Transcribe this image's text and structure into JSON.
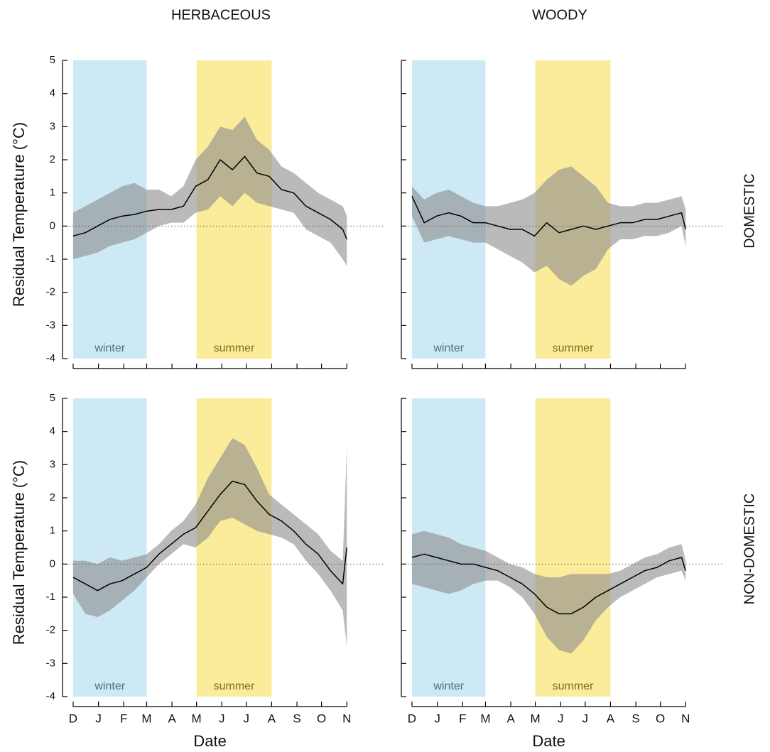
{
  "chart_data": [
    {
      "type": "line",
      "title": "HERBACEOUS",
      "ylabel": "Residual Temperature (°C)",
      "xlim": [
        -13,
        380
      ],
      "ylim": [
        -4.3,
        5
      ],
      "yticks": [
        -4,
        -3,
        -2,
        -1,
        0,
        1,
        2,
        3,
        4,
        5
      ],
      "xticks": [
        0,
        31,
        62,
        90,
        121,
        151,
        182,
        212,
        243,
        274,
        304,
        335
      ],
      "tick_labels": {
        "x": false,
        "y": true
      },
      "hline": 0,
      "spans": [
        {
          "label": "winter",
          "start": 0,
          "end": 90,
          "color": "#cde9f5",
          "text_color": "#4d6f86"
        },
        {
          "label": "summer",
          "start": 151,
          "end": 243,
          "color": "#fbec9b",
          "text_color": "#7d6d12"
        }
      ],
      "x": [
        0,
        15,
        30,
        45,
        60,
        75,
        90,
        105,
        120,
        135,
        150,
        165,
        180,
        195,
        210,
        225,
        240,
        255,
        270,
        285,
        300,
        315,
        330,
        335
      ],
      "band": {
        "color": "#8c8c8c",
        "lower": [
          -1.0,
          -0.9,
          -0.8,
          -0.6,
          -0.5,
          -0.4,
          -0.2,
          0.0,
          0.1,
          0.1,
          0.4,
          0.5,
          0.9,
          0.6,
          1.0,
          0.7,
          0.6,
          0.5,
          0.4,
          -0.1,
          -0.3,
          -0.5,
          -1.0,
          -1.2
        ],
        "upper": [
          0.4,
          0.6,
          0.8,
          1.0,
          1.2,
          1.3,
          1.1,
          1.1,
          0.9,
          1.2,
          2.0,
          2.4,
          3.0,
          2.9,
          3.3,
          2.6,
          2.3,
          1.8,
          1.6,
          1.3,
          1.0,
          0.8,
          0.6,
          0.3
        ]
      },
      "line": {
        "color": "#000000",
        "values": [
          -0.3,
          -0.2,
          0.0,
          0.2,
          0.3,
          0.35,
          0.45,
          0.5,
          0.5,
          0.6,
          1.2,
          1.4,
          2.0,
          1.7,
          2.1,
          1.6,
          1.5,
          1.1,
          1.0,
          0.6,
          0.4,
          0.2,
          -0.1,
          -0.4
        ]
      }
    },
    {
      "type": "line",
      "title": "WOODY",
      "row_label": "DOMESTIC",
      "xlim": [
        -13,
        380
      ],
      "ylim": [
        -4.3,
        5
      ],
      "yticks": [
        -4,
        -3,
        -2,
        -1,
        0,
        1,
        2,
        3,
        4,
        5
      ],
      "xticks": [
        0,
        31,
        62,
        90,
        121,
        151,
        182,
        212,
        243,
        274,
        304,
        335
      ],
      "tick_labels": {
        "x": false,
        "y": false
      },
      "hline": 0,
      "spans": [
        {
          "label": "winter",
          "start": 0,
          "end": 90,
          "color": "#cde9f5",
          "text_color": "#4d6f86"
        },
        {
          "label": "summer",
          "start": 151,
          "end": 243,
          "color": "#fbec9b",
          "text_color": "#7d6d12"
        }
      ],
      "x": [
        0,
        15,
        30,
        45,
        60,
        75,
        90,
        105,
        120,
        135,
        150,
        165,
        180,
        195,
        210,
        225,
        240,
        255,
        270,
        285,
        300,
        315,
        330,
        335
      ],
      "band": {
        "color": "#8c8c8c",
        "lower": [
          0.3,
          -0.5,
          -0.4,
          -0.3,
          -0.4,
          -0.5,
          -0.5,
          -0.7,
          -0.9,
          -1.1,
          -1.4,
          -1.2,
          -1.6,
          -1.8,
          -1.5,
          -1.3,
          -0.7,
          -0.4,
          -0.4,
          -0.3,
          -0.3,
          -0.2,
          0.0,
          -0.6
        ],
        "upper": [
          1.2,
          0.8,
          1.0,
          1.1,
          0.9,
          0.7,
          0.6,
          0.6,
          0.7,
          0.8,
          1.0,
          1.4,
          1.7,
          1.8,
          1.5,
          1.2,
          0.7,
          0.6,
          0.6,
          0.7,
          0.7,
          0.8,
          0.9,
          0.5
        ]
      },
      "line": {
        "color": "#000000",
        "values": [
          0.9,
          0.1,
          0.3,
          0.4,
          0.3,
          0.1,
          0.1,
          0.0,
          -0.1,
          -0.1,
          -0.3,
          0.1,
          -0.2,
          -0.1,
          0.0,
          -0.1,
          0.0,
          0.1,
          0.1,
          0.2,
          0.2,
          0.3,
          0.4,
          -0.1
        ]
      }
    },
    {
      "type": "line",
      "ylabel": "Residual Temperature (°C)",
      "xlabel": "Date",
      "xlim": [
        -13,
        380
      ],
      "ylim": [
        -4.3,
        5
      ],
      "yticks": [
        -4,
        -3,
        -2,
        -1,
        0,
        1,
        2,
        3,
        4,
        5
      ],
      "xticks": [
        {
          "value": 0,
          "label": "D"
        },
        {
          "value": 31,
          "label": "J"
        },
        {
          "value": 62,
          "label": "F"
        },
        {
          "value": 90,
          "label": "M"
        },
        {
          "value": 121,
          "label": "A"
        },
        {
          "value": 151,
          "label": "M"
        },
        {
          "value": 182,
          "label": "J"
        },
        {
          "value": 212,
          "label": "J"
        },
        {
          "value": 243,
          "label": "A"
        },
        {
          "value": 274,
          "label": "S"
        },
        {
          "value": 304,
          "label": "O"
        },
        {
          "value": 335,
          "label": "N"
        }
      ],
      "tick_labels": {
        "x": true,
        "y": true
      },
      "hline": 0,
      "spans": [
        {
          "label": "winter",
          "start": 0,
          "end": 90,
          "color": "#cde9f5",
          "text_color": "#4d6f86"
        },
        {
          "label": "summer",
          "start": 151,
          "end": 243,
          "color": "#fbec9b",
          "text_color": "#7d6d12"
        }
      ],
      "x": [
        0,
        15,
        30,
        45,
        60,
        75,
        90,
        105,
        120,
        135,
        150,
        165,
        180,
        195,
        210,
        225,
        240,
        255,
        270,
        285,
        300,
        315,
        330,
        335
      ],
      "band": {
        "color": "#8c8c8c",
        "lower": [
          -0.9,
          -1.5,
          -1.6,
          -1.4,
          -1.1,
          -0.8,
          -0.4,
          0.0,
          0.3,
          0.6,
          0.5,
          0.8,
          1.3,
          1.4,
          1.2,
          1.0,
          0.9,
          0.8,
          0.6,
          0.1,
          -0.3,
          -0.8,
          -1.4,
          -2.5
        ],
        "upper": [
          0.1,
          0.1,
          0.0,
          0.2,
          0.1,
          0.2,
          0.3,
          0.6,
          1.0,
          1.3,
          1.8,
          2.6,
          3.2,
          3.8,
          3.6,
          2.9,
          2.1,
          1.8,
          1.5,
          1.2,
          0.9,
          0.4,
          0.1,
          3.5
        ]
      },
      "line": {
        "color": "#000000",
        "values": [
          -0.4,
          -0.6,
          -0.8,
          -0.6,
          -0.5,
          -0.3,
          -0.1,
          0.3,
          0.6,
          0.9,
          1.1,
          1.6,
          2.1,
          2.5,
          2.4,
          1.9,
          1.5,
          1.3,
          1.0,
          0.6,
          0.3,
          -0.2,
          -0.6,
          0.5
        ]
      }
    },
    {
      "type": "line",
      "row_label": "NON-DOMESTIC",
      "xlabel": "Date",
      "xlim": [
        -13,
        380
      ],
      "ylim": [
        -4.3,
        5
      ],
      "yticks": [
        -4,
        -3,
        -2,
        -1,
        0,
        1,
        2,
        3,
        4,
        5
      ],
      "xticks": [
        {
          "value": 0,
          "label": "D"
        },
        {
          "value": 31,
          "label": "J"
        },
        {
          "value": 62,
          "label": "F"
        },
        {
          "value": 90,
          "label": "M"
        },
        {
          "value": 121,
          "label": "A"
        },
        {
          "value": 151,
          "label": "M"
        },
        {
          "value": 182,
          "label": "J"
        },
        {
          "value": 212,
          "label": "J"
        },
        {
          "value": 243,
          "label": "A"
        },
        {
          "value": 274,
          "label": "S"
        },
        {
          "value": 304,
          "label": "O"
        },
        {
          "value": 335,
          "label": "N"
        }
      ],
      "tick_labels": {
        "x": true,
        "y": false
      },
      "hline": 0,
      "spans": [
        {
          "label": "winter",
          "start": 0,
          "end": 90,
          "color": "#cde9f5",
          "text_color": "#4d6f86"
        },
        {
          "label": "summer",
          "start": 151,
          "end": 243,
          "color": "#fbec9b",
          "text_color": "#7d6d12"
        }
      ],
      "x": [
        0,
        15,
        30,
        45,
        60,
        75,
        90,
        105,
        120,
        135,
        150,
        165,
        180,
        195,
        210,
        225,
        240,
        255,
        270,
        285,
        300,
        315,
        330,
        335
      ],
      "band": {
        "color": "#8c8c8c",
        "lower": [
          -0.6,
          -0.7,
          -0.8,
          -0.9,
          -0.8,
          -0.6,
          -0.5,
          -0.5,
          -0.7,
          -1.0,
          -1.5,
          -2.2,
          -2.6,
          -2.7,
          -2.3,
          -1.7,
          -1.3,
          -1.0,
          -0.8,
          -0.6,
          -0.4,
          -0.3,
          -0.2,
          -0.5
        ],
        "upper": [
          0.9,
          1.0,
          0.9,
          0.8,
          0.6,
          0.5,
          0.4,
          0.2,
          0.0,
          -0.1,
          -0.3,
          -0.4,
          -0.4,
          -0.3,
          -0.3,
          -0.3,
          -0.3,
          -0.2,
          0.0,
          0.2,
          0.3,
          0.5,
          0.6,
          0.1
        ]
      },
      "line": {
        "color": "#000000",
        "values": [
          0.2,
          0.3,
          0.2,
          0.1,
          0.0,
          0.0,
          -0.1,
          -0.2,
          -0.4,
          -0.6,
          -0.9,
          -1.3,
          -1.5,
          -1.5,
          -1.3,
          -1.0,
          -0.8,
          -0.6,
          -0.4,
          -0.2,
          -0.1,
          0.1,
          0.2,
          -0.2
        ]
      }
    }
  ]
}
